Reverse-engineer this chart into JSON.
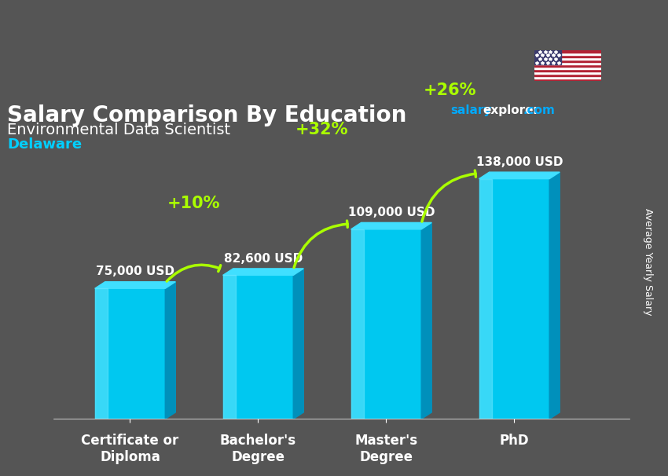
{
  "title": "Salary Comparison By Education",
  "subtitle": "Environmental Data Scientist",
  "location": "Delaware",
  "ylabel": "Average Yearly Salary",
  "categories": [
    "Certificate or\nDiploma",
    "Bachelor's\nDegree",
    "Master's\nDegree",
    "PhD"
  ],
  "values": [
    75000,
    82600,
    109000,
    138000
  ],
  "value_labels": [
    "75,000 USD",
    "82,600 USD",
    "109,000 USD",
    "138,000 USD"
  ],
  "pct_changes": [
    "+10%",
    "+32%",
    "+26%"
  ],
  "bar_color_top": "#00cfff",
  "bar_color_mid": "#00aadd",
  "bar_color_side": "#007aaa",
  "bar_color_bottom": "#005577",
  "background_color": "#555555",
  "title_color": "#ffffff",
  "subtitle_color": "#ffffff",
  "location_color": "#00cfff",
  "value_label_color": "#ffffff",
  "pct_color": "#aaff00",
  "arrow_color": "#aaff00",
  "website_salary_color": "#00aaff",
  "website_explorer_color": "#ffffff",
  "website_com_color": "#00aaff",
  "ylim": [
    0,
    160000
  ],
  "figsize": [
    8.5,
    6.06
  ],
  "dpi": 100
}
